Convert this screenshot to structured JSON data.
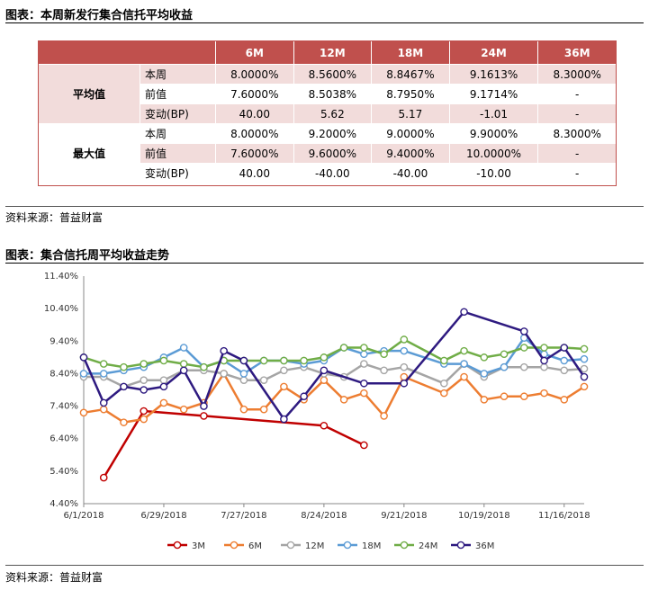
{
  "table_section": {
    "title": "图表：本周新发行集合信托平均收益",
    "source": "资料来源：普益财富",
    "columns": [
      "6M",
      "12M",
      "18M",
      "24M",
      "36M"
    ],
    "groups": [
      {
        "label": "平均值",
        "rows": [
          {
            "label": "本周",
            "values": [
              "8.0000%",
              "8.5600%",
              "8.8467%",
              "9.1613%",
              "8.3000%"
            ]
          },
          {
            "label": "前值",
            "values": [
              "7.6000%",
              "8.5038%",
              "8.7950%",
              "9.1714%",
              "-"
            ]
          },
          {
            "label": "变动(BP)",
            "values": [
              "40.00",
              "5.62",
              "5.17",
              "-1.01",
              "-"
            ]
          }
        ]
      },
      {
        "label": "最大值",
        "rows": [
          {
            "label": "本周",
            "values": [
              "8.0000%",
              "9.2000%",
              "9.0000%",
              "9.9000%",
              "8.3000%"
            ]
          },
          {
            "label": "前值",
            "values": [
              "7.6000%",
              "9.6000%",
              "9.4000%",
              "10.0000%",
              "-"
            ]
          },
          {
            "label": "变动(BP)",
            "values": [
              "40.00",
              "-40.00",
              "-40.00",
              "-10.00",
              "-"
            ]
          }
        ]
      }
    ]
  },
  "chart_section": {
    "title": "图表：集合信托周平均收益走势",
    "source": "资料来源：普益财富"
  },
  "chart_data": {
    "type": "line",
    "x_labels": [
      "6/1/2018",
      "6/29/2018",
      "7/27/2018",
      "8/24/2018",
      "9/21/2018",
      "10/19/2018",
      "11/16/2018"
    ],
    "y_ticks": [
      "4.40%",
      "5.40%",
      "6.40%",
      "7.40%",
      "8.40%",
      "9.40%",
      "10.40%",
      "11.40%"
    ],
    "ylim": [
      4.4,
      11.4
    ],
    "xlim": [
      "2018-06-01",
      "2018-11-23"
    ],
    "legend_position": "bottom",
    "series": [
      {
        "name": "3M",
        "color": "#c00000",
        "points": [
          [
            "2018-06-08",
            5.2
          ],
          [
            "2018-06-22",
            7.25
          ],
          [
            "2018-07-13",
            7.1
          ],
          [
            "2018-08-24",
            6.8
          ],
          [
            "2018-09-07",
            6.2
          ]
        ]
      },
      {
        "name": "6M",
        "color": "#ed7d31",
        "points": [
          [
            "2018-06-01",
            7.2
          ],
          [
            "2018-06-08",
            7.3
          ],
          [
            "2018-06-15",
            6.9
          ],
          [
            "2018-06-22",
            7.0
          ],
          [
            "2018-06-29",
            7.5
          ],
          [
            "2018-07-06",
            7.3
          ],
          [
            "2018-07-13",
            7.5
          ],
          [
            "2018-07-20",
            8.4
          ],
          [
            "2018-07-27",
            7.3
          ],
          [
            "2018-08-03",
            7.3
          ],
          [
            "2018-08-10",
            8.0
          ],
          [
            "2018-08-17",
            7.6
          ],
          [
            "2018-08-24",
            8.2
          ],
          [
            "2018-08-31",
            7.6
          ],
          [
            "2018-09-07",
            7.8
          ],
          [
            "2018-09-14",
            7.1
          ],
          [
            "2018-09-21",
            8.3
          ],
          [
            "2018-10-05",
            7.8
          ],
          [
            "2018-10-12",
            8.3
          ],
          [
            "2018-10-19",
            7.6
          ],
          [
            "2018-10-26",
            7.7
          ],
          [
            "2018-11-02",
            7.7
          ],
          [
            "2018-11-09",
            7.8
          ],
          [
            "2018-11-16",
            7.6
          ],
          [
            "2018-11-23",
            8.0
          ]
        ]
      },
      {
        "name": "12M",
        "color": "#a5a5a5",
        "points": [
          [
            "2018-06-01",
            8.3
          ],
          [
            "2018-06-08",
            8.3
          ],
          [
            "2018-06-15",
            8.0
          ],
          [
            "2018-06-22",
            8.2
          ],
          [
            "2018-06-29",
            8.2
          ],
          [
            "2018-07-06",
            8.5
          ],
          [
            "2018-07-13",
            8.5
          ],
          [
            "2018-07-20",
            8.4
          ],
          [
            "2018-07-27",
            8.2
          ],
          [
            "2018-08-03",
            8.2
          ],
          [
            "2018-08-10",
            8.5
          ],
          [
            "2018-08-17",
            8.6
          ],
          [
            "2018-08-24",
            8.4
          ],
          [
            "2018-08-31",
            8.3
          ],
          [
            "2018-09-07",
            8.7
          ],
          [
            "2018-09-14",
            8.5
          ],
          [
            "2018-09-21",
            8.6
          ],
          [
            "2018-10-05",
            8.1
          ],
          [
            "2018-10-12",
            8.7
          ],
          [
            "2018-10-19",
            8.3
          ],
          [
            "2018-10-26",
            8.6
          ],
          [
            "2018-11-02",
            8.6
          ],
          [
            "2018-11-09",
            8.6
          ],
          [
            "2018-11-16",
            8.5
          ],
          [
            "2018-11-23",
            8.55
          ]
        ]
      },
      {
        "name": "18M",
        "color": "#5b9bd5",
        "points": [
          [
            "2018-06-01",
            8.4
          ],
          [
            "2018-06-08",
            8.4
          ],
          [
            "2018-06-15",
            8.5
          ],
          [
            "2018-06-22",
            8.6
          ],
          [
            "2018-06-29",
            8.9
          ],
          [
            "2018-07-06",
            9.2
          ],
          [
            "2018-07-13",
            8.6
          ],
          [
            "2018-07-20",
            8.8
          ],
          [
            "2018-07-27",
            8.4
          ],
          [
            "2018-08-03",
            8.8
          ],
          [
            "2018-08-10",
            8.8
          ],
          [
            "2018-08-17",
            8.7
          ],
          [
            "2018-08-24",
            8.8
          ],
          [
            "2018-08-31",
            9.2
          ],
          [
            "2018-09-07",
            9.0
          ],
          [
            "2018-09-14",
            9.1
          ],
          [
            "2018-09-21",
            9.1
          ],
          [
            "2018-10-05",
            8.7
          ],
          [
            "2018-10-12",
            8.7
          ],
          [
            "2018-10-19",
            8.4
          ],
          [
            "2018-10-26",
            8.6
          ],
          [
            "2018-11-02",
            9.5
          ],
          [
            "2018-11-09",
            9.0
          ],
          [
            "2018-11-16",
            8.8
          ],
          [
            "2018-11-23",
            8.85
          ]
        ]
      },
      {
        "name": "24M",
        "color": "#70ad47",
        "points": [
          [
            "2018-06-01",
            8.9
          ],
          [
            "2018-06-08",
            8.7
          ],
          [
            "2018-06-15",
            8.6
          ],
          [
            "2018-06-22",
            8.7
          ],
          [
            "2018-06-29",
            8.8
          ],
          [
            "2018-07-06",
            8.7
          ],
          [
            "2018-07-13",
            8.6
          ],
          [
            "2018-07-20",
            8.8
          ],
          [
            "2018-07-27",
            8.8
          ],
          [
            "2018-08-03",
            8.8
          ],
          [
            "2018-08-10",
            8.8
          ],
          [
            "2018-08-17",
            8.8
          ],
          [
            "2018-08-24",
            8.9
          ],
          [
            "2018-08-31",
            9.2
          ],
          [
            "2018-09-07",
            9.2
          ],
          [
            "2018-09-14",
            9.0
          ],
          [
            "2018-09-21",
            9.45
          ],
          [
            "2018-10-05",
            8.8
          ],
          [
            "2018-10-12",
            9.1
          ],
          [
            "2018-10-19",
            8.9
          ],
          [
            "2018-10-26",
            9.0
          ],
          [
            "2018-11-02",
            9.2
          ],
          [
            "2018-11-09",
            9.2
          ],
          [
            "2018-11-16",
            9.2
          ],
          [
            "2018-11-23",
            9.16
          ]
        ]
      },
      {
        "name": "36M",
        "color": "#2e1a80",
        "points": [
          [
            "2018-06-01",
            8.9
          ],
          [
            "2018-06-08",
            7.5
          ],
          [
            "2018-06-15",
            8.0
          ],
          [
            "2018-06-22",
            7.9
          ],
          [
            "2018-06-29",
            8.0
          ],
          [
            "2018-07-06",
            8.5
          ],
          [
            "2018-07-13",
            7.4
          ],
          [
            "2018-07-20",
            9.1
          ],
          [
            "2018-07-27",
            8.8
          ],
          [
            "2018-08-10",
            7.0
          ],
          [
            "2018-08-17",
            7.7
          ],
          [
            "2018-08-24",
            8.5
          ],
          [
            "2018-09-07",
            8.1
          ],
          [
            "2018-09-21",
            8.1
          ],
          [
            "2018-10-12",
            10.3
          ],
          [
            "2018-11-02",
            9.7
          ],
          [
            "2018-11-09",
            8.8
          ],
          [
            "2018-11-16",
            9.2
          ],
          [
            "2018-11-23",
            8.3
          ]
        ]
      }
    ]
  }
}
